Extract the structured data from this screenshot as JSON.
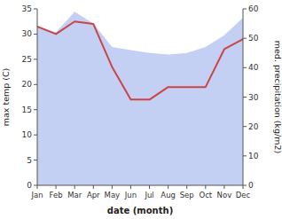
{
  "chart_data": {
    "type": "line",
    "xlabel": "date (month)",
    "ylabel": "max temp (C)",
    "y2label": "med. precipitation (kg/m2)",
    "categories": [
      "Jan",
      "Feb",
      "Mar",
      "Apr",
      "May",
      "Jun",
      "Jul",
      "Aug",
      "Sep",
      "Oct",
      "Nov",
      "Dec"
    ],
    "series": [
      {
        "type": "area",
        "color": "#aabbee",
        "axis": "y2",
        "values": [
          54.0,
          52.0,
          59.0,
          55.0,
          47.0,
          46.0,
          45.0,
          44.5,
          45.0,
          47.0,
          51.0,
          57.0
        ]
      },
      {
        "type": "line",
        "color": "#cc4444",
        "values": [
          31.5,
          30.0,
          32.5,
          32.0,
          23.5,
          17.0,
          17.0,
          19.5,
          19.5,
          19.5,
          27.0,
          29.0
        ]
      }
    ],
    "ylim": [
      0,
      35
    ],
    "yticks": [
      0,
      5,
      10,
      15,
      20,
      25,
      30,
      35
    ],
    "y2lim": [
      0,
      60
    ],
    "y2ticks": [
      0,
      10,
      20,
      30,
      40,
      50,
      60
    ]
  }
}
